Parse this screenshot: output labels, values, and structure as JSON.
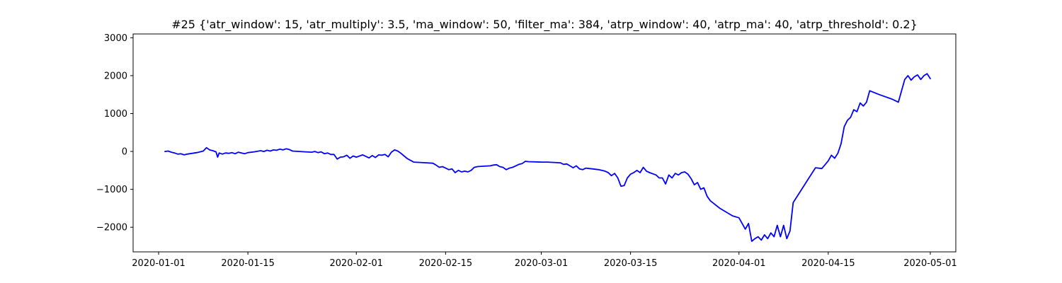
{
  "chart_data": {
    "type": "line",
    "title": "#25 {'atr_window': 15, 'atr_multiply': 3.5, 'ma_window': 50, 'filter_ma': 384, 'atrp_window': 40, 'atrp_ma': 40, 'atrp_threshold': 0.2}",
    "xlabel": "",
    "ylabel": "",
    "x_is_date": true,
    "xlim": [
      "2019-12-28",
      "2020-05-05"
    ],
    "ylim": [
      -2650,
      3100
    ],
    "x_ticks": [
      "2020-01-01",
      "2020-01-15",
      "2020-02-01",
      "2020-02-15",
      "2020-03-01",
      "2020-03-15",
      "2020-04-01",
      "2020-04-15",
      "2020-05-01"
    ],
    "y_ticks": [
      -2000,
      -1000,
      0,
      1000,
      2000,
      3000
    ],
    "y_tick_labels": [
      "−2000",
      "−1000",
      "0",
      "1000",
      "2000",
      "3000"
    ],
    "grid": false,
    "legend": "none",
    "series": [
      {
        "color": "#0000ff",
        "points": [
          [
            "2020-01-02",
            0
          ],
          [
            "2020-01-02 12:00",
            10
          ],
          [
            "2020-01-03",
            -20
          ],
          [
            "2020-01-03 12:00",
            -40
          ],
          [
            "2020-01-04",
            -70
          ],
          [
            "2020-01-04 12:00",
            -60
          ],
          [
            "2020-01-05",
            -90
          ],
          [
            "2020-01-05 12:00",
            -70
          ],
          [
            "2020-01-07",
            -30
          ],
          [
            "2020-01-08",
            10
          ],
          [
            "2020-01-08 12:00",
            100
          ],
          [
            "2020-01-09",
            40
          ],
          [
            "2020-01-09 12:00",
            20
          ],
          [
            "2020-01-10",
            -10
          ],
          [
            "2020-01-10 06:00",
            -150
          ],
          [
            "2020-01-10 12:00",
            -40
          ],
          [
            "2020-01-11",
            -70
          ],
          [
            "2020-01-11 12:00",
            -40
          ],
          [
            "2020-01-12",
            -50
          ],
          [
            "2020-01-12 12:00",
            -30
          ],
          [
            "2020-01-13",
            -60
          ],
          [
            "2020-01-13 12:00",
            -20
          ],
          [
            "2020-01-14",
            -40
          ],
          [
            "2020-01-14 12:00",
            -60
          ],
          [
            "2020-01-15",
            -30
          ],
          [
            "2020-01-16",
            -10
          ],
          [
            "2020-01-17",
            20
          ],
          [
            "2020-01-17 12:00",
            0
          ],
          [
            "2020-01-18",
            30
          ],
          [
            "2020-01-18 12:00",
            10
          ],
          [
            "2020-01-19",
            40
          ],
          [
            "2020-01-19 12:00",
            30
          ],
          [
            "2020-01-20",
            60
          ],
          [
            "2020-01-20 12:00",
            40
          ],
          [
            "2020-01-21",
            70
          ],
          [
            "2020-01-21 12:00",
            50
          ],
          [
            "2020-01-22",
            10
          ],
          [
            "2020-01-24",
            -10
          ],
          [
            "2020-01-25",
            -20
          ],
          [
            "2020-01-25 12:00",
            0
          ],
          [
            "2020-01-26",
            -30
          ],
          [
            "2020-01-26 12:00",
            -10
          ],
          [
            "2020-01-27",
            -60
          ],
          [
            "2020-01-27 12:00",
            -40
          ],
          [
            "2020-01-28",
            -80
          ],
          [
            "2020-01-28 12:00",
            -80
          ],
          [
            "2020-01-29",
            -200
          ],
          [
            "2020-01-29 12:00",
            -150
          ],
          [
            "2020-01-30",
            -140
          ],
          [
            "2020-01-30 12:00",
            -100
          ],
          [
            "2020-01-31",
            -180
          ],
          [
            "2020-01-31 12:00",
            -120
          ],
          [
            "2020-02-01",
            -150
          ],
          [
            "2020-02-02",
            -90
          ],
          [
            "2020-02-03",
            -170
          ],
          [
            "2020-02-03 12:00",
            -110
          ],
          [
            "2020-02-04",
            -160
          ],
          [
            "2020-02-04 12:00",
            -90
          ],
          [
            "2020-02-05",
            -100
          ],
          [
            "2020-02-05 12:00",
            -80
          ],
          [
            "2020-02-06",
            -140
          ],
          [
            "2020-02-06 12:00",
            -20
          ],
          [
            "2020-02-07",
            40
          ],
          [
            "2020-02-07 12:00",
            10
          ],
          [
            "2020-02-08",
            -50
          ],
          [
            "2020-02-08 12:00",
            -120
          ],
          [
            "2020-02-09",
            -190
          ],
          [
            "2020-02-10",
            -280
          ],
          [
            "2020-02-11",
            -290
          ],
          [
            "2020-02-12",
            -300
          ],
          [
            "2020-02-13",
            -310
          ],
          [
            "2020-02-13 12:00",
            -360
          ],
          [
            "2020-02-14",
            -420
          ],
          [
            "2020-02-14 12:00",
            -400
          ],
          [
            "2020-02-15",
            -440
          ],
          [
            "2020-02-15 12:00",
            -480
          ],
          [
            "2020-02-16",
            -460
          ],
          [
            "2020-02-16 12:00",
            -560
          ],
          [
            "2020-02-17",
            -500
          ],
          [
            "2020-02-17 12:00",
            -540
          ],
          [
            "2020-02-18",
            -520
          ],
          [
            "2020-02-18 12:00",
            -540
          ],
          [
            "2020-02-19",
            -500
          ],
          [
            "2020-02-19 12:00",
            -420
          ],
          [
            "2020-02-20",
            -400
          ],
          [
            "2020-02-21",
            -390
          ],
          [
            "2020-02-22",
            -380
          ],
          [
            "2020-02-22 12:00",
            -360
          ],
          [
            "2020-02-23",
            -350
          ],
          [
            "2020-02-23 12:00",
            -400
          ],
          [
            "2020-02-24",
            -420
          ],
          [
            "2020-02-24 12:00",
            -480
          ],
          [
            "2020-02-25",
            -440
          ],
          [
            "2020-02-25 12:00",
            -420
          ],
          [
            "2020-02-26",
            -380
          ],
          [
            "2020-02-26 12:00",
            -340
          ],
          [
            "2020-02-27",
            -320
          ],
          [
            "2020-02-27 12:00",
            -260
          ],
          [
            "2020-02-28",
            -270
          ],
          [
            "2020-03-01",
            -280
          ],
          [
            "2020-03-02",
            -280
          ],
          [
            "2020-03-03",
            -290
          ],
          [
            "2020-03-04",
            -300
          ],
          [
            "2020-03-04 12:00",
            -340
          ],
          [
            "2020-03-05",
            -330
          ],
          [
            "2020-03-05 12:00",
            -380
          ],
          [
            "2020-03-06",
            -430
          ],
          [
            "2020-03-06 12:00",
            -380
          ],
          [
            "2020-03-07",
            -460
          ],
          [
            "2020-03-07 12:00",
            -480
          ],
          [
            "2020-03-08",
            -440
          ],
          [
            "2020-03-08 12:00",
            -450
          ],
          [
            "2020-03-09",
            -460
          ],
          [
            "2020-03-10",
            -480
          ],
          [
            "2020-03-11",
            -520
          ],
          [
            "2020-03-11 12:00",
            -560
          ],
          [
            "2020-03-12",
            -640
          ],
          [
            "2020-03-12 12:00",
            -580
          ],
          [
            "2020-03-13",
            -700
          ],
          [
            "2020-03-13 12:00",
            -920
          ],
          [
            "2020-03-14",
            -900
          ],
          [
            "2020-03-14 12:00",
            -700
          ],
          [
            "2020-03-15",
            -600
          ],
          [
            "2020-03-15 12:00",
            -560
          ],
          [
            "2020-03-16",
            -500
          ],
          [
            "2020-03-16 12:00",
            -560
          ],
          [
            "2020-03-17",
            -420
          ],
          [
            "2020-03-17 12:00",
            -520
          ],
          [
            "2020-03-18",
            -560
          ],
          [
            "2020-03-19",
            -620
          ],
          [
            "2020-03-19 12:00",
            -700
          ],
          [
            "2020-03-20",
            -700
          ],
          [
            "2020-03-20 12:00",
            -860
          ],
          [
            "2020-03-21",
            -620
          ],
          [
            "2020-03-21 12:00",
            -700
          ],
          [
            "2020-03-22",
            -580
          ],
          [
            "2020-03-22 12:00",
            -620
          ],
          [
            "2020-03-23",
            -560
          ],
          [
            "2020-03-23 12:00",
            -540
          ],
          [
            "2020-03-24",
            -600
          ],
          [
            "2020-03-24 12:00",
            -720
          ],
          [
            "2020-03-25",
            -880
          ],
          [
            "2020-03-25 12:00",
            -820
          ],
          [
            "2020-03-26",
            -1000
          ],
          [
            "2020-03-26 12:00",
            -960
          ],
          [
            "2020-03-27",
            -1180
          ],
          [
            "2020-03-27 12:00",
            -1300
          ],
          [
            "2020-03-29",
            -1500
          ],
          [
            "2020-03-31",
            -1700
          ],
          [
            "2020-04-01",
            -1750
          ],
          [
            "2020-04-01 12:00",
            -1900
          ],
          [
            "2020-04-02",
            -2050
          ],
          [
            "2020-04-02 12:00",
            -1900
          ],
          [
            "2020-04-03",
            -2370
          ],
          [
            "2020-04-03 12:00",
            -2300
          ],
          [
            "2020-04-04",
            -2250
          ],
          [
            "2020-04-04 12:00",
            -2340
          ],
          [
            "2020-04-05",
            -2200
          ],
          [
            "2020-04-05 12:00",
            -2300
          ],
          [
            "2020-04-06",
            -2150
          ],
          [
            "2020-04-06 12:00",
            -2250
          ],
          [
            "2020-04-07",
            -1950
          ],
          [
            "2020-04-07 12:00",
            -2250
          ],
          [
            "2020-04-08",
            -1950
          ],
          [
            "2020-04-08 12:00",
            -2300
          ],
          [
            "2020-04-09",
            -2100
          ],
          [
            "2020-04-09 12:00",
            -1350
          ],
          [
            "2020-04-13",
            -430
          ],
          [
            "2020-04-14",
            -450
          ],
          [
            "2020-04-14 12:00",
            -350
          ],
          [
            "2020-04-15",
            -250
          ],
          [
            "2020-04-15 12:00",
            -100
          ],
          [
            "2020-04-16",
            -180
          ],
          [
            "2020-04-16 12:00",
            -50
          ],
          [
            "2020-04-17",
            200
          ],
          [
            "2020-04-17 12:00",
            650
          ],
          [
            "2020-04-18",
            820
          ],
          [
            "2020-04-18 12:00",
            900
          ],
          [
            "2020-04-19",
            1100
          ],
          [
            "2020-04-19 12:00",
            1050
          ],
          [
            "2020-04-20",
            1280
          ],
          [
            "2020-04-20 12:00",
            1200
          ],
          [
            "2020-04-21",
            1300
          ],
          [
            "2020-04-21 12:00",
            1600
          ],
          [
            "2020-04-23",
            1500
          ],
          [
            "2020-04-25",
            1380
          ],
          [
            "2020-04-26",
            1300
          ],
          [
            "2020-04-26 12:00",
            1600
          ],
          [
            "2020-04-27",
            1900
          ],
          [
            "2020-04-27 12:00",
            2000
          ],
          [
            "2020-04-28",
            1880
          ],
          [
            "2020-04-28 12:00",
            1970
          ],
          [
            "2020-04-29",
            2020
          ],
          [
            "2020-04-29 12:00",
            1900
          ],
          [
            "2020-04-30",
            2000
          ],
          [
            "2020-04-30 12:00",
            2050
          ],
          [
            "2020-05-01",
            1920
          ]
        ]
      }
    ]
  }
}
